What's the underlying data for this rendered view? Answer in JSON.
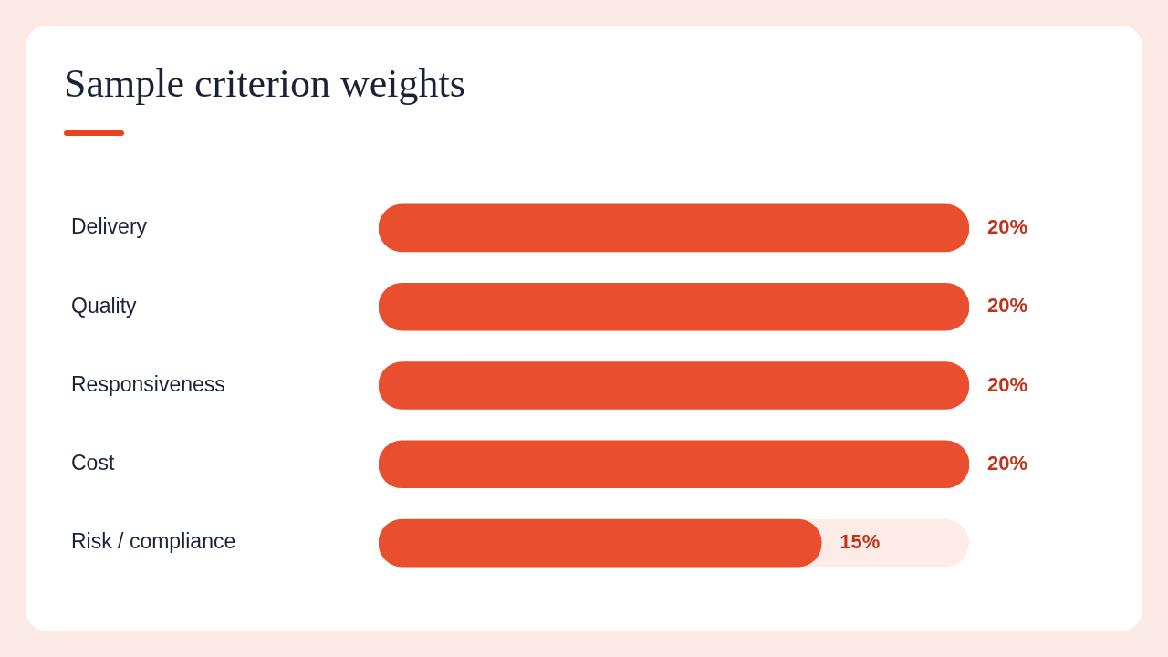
{
  "chart_data": {
    "type": "bar",
    "orientation": "horizontal",
    "title": "Sample criterion weights",
    "categories": [
      "Delivery",
      "Quality",
      "Responsiveness",
      "Cost",
      "Risk / compliance"
    ],
    "values": [
      20,
      20,
      20,
      20,
      15
    ],
    "value_labels": [
      "20%",
      "20%",
      "20%",
      "20%",
      "15%"
    ],
    "color": "#e94e2e",
    "grid": false,
    "legend": false
  }
}
